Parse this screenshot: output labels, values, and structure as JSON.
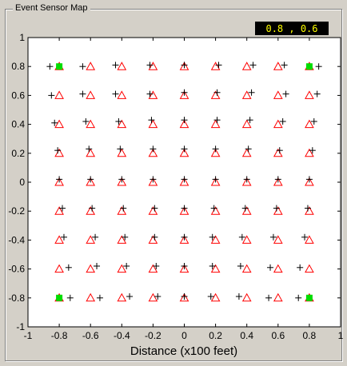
{
  "window": {
    "group_title": "Event Sensor Map",
    "coordinate_readout": "0.8 , 0.6"
  },
  "colors": {
    "panel_bg": "#d4d0c8",
    "plot_bg": "#ffffff",
    "triangle": "#ff0000",
    "cross": "#000000",
    "sensor": "#00dd00",
    "readout_bg": "#000000",
    "readout_text": "#ffff00"
  },
  "chart_data": {
    "type": "scatter",
    "xlabel": "Distance (x100 feet)",
    "ylabel": "",
    "title": "",
    "xlim": [
      -1,
      1
    ],
    "ylim": [
      -1,
      1
    ],
    "x_ticks": [
      "-1",
      "-0.8",
      "-0.6",
      "-0.4",
      "-0.2",
      "0",
      "0.2",
      "0.4",
      "0.6",
      "0.8",
      "1"
    ],
    "y_ticks": [
      "1",
      "0.8",
      "0.6",
      "0.4",
      "0.2",
      "0",
      "-0.2",
      "-0.4",
      "-0.6",
      "-0.8",
      "-1"
    ],
    "grid": false,
    "grid_positions": [
      -0.8,
      -0.6,
      -0.4,
      -0.2,
      0,
      0.2,
      0.4,
      0.6,
      0.8
    ],
    "sensors": [
      {
        "x": -0.8,
        "y": 0.8
      },
      {
        "x": 0.8,
        "y": 0.8
      },
      {
        "x": -0.8,
        "y": -0.8
      },
      {
        "x": 0.8,
        "y": -0.8
      }
    ],
    "series": [
      {
        "marker": "triangle",
        "description": "grid positions (red triangles)"
      },
      {
        "marker": "cross",
        "offsets_note": "estimated positions, offset from grid",
        "points": [
          [
            -0.86,
            0.8
          ],
          [
            -0.65,
            0.8
          ],
          [
            -0.44,
            0.81
          ],
          [
            -0.22,
            0.81
          ],
          [
            0.0,
            0.81
          ],
          [
            0.22,
            0.81
          ],
          [
            0.44,
            0.81
          ],
          [
            0.64,
            0.81
          ],
          [
            0.86,
            0.8
          ],
          [
            -0.85,
            0.6
          ],
          [
            -0.65,
            0.61
          ],
          [
            -0.44,
            0.61
          ],
          [
            -0.22,
            0.61
          ],
          [
            0.0,
            0.62
          ],
          [
            0.21,
            0.62
          ],
          [
            0.43,
            0.62
          ],
          [
            0.65,
            0.61
          ],
          [
            0.85,
            0.61
          ],
          [
            -0.83,
            0.41
          ],
          [
            -0.63,
            0.42
          ],
          [
            -0.42,
            0.42
          ],
          [
            -0.21,
            0.43
          ],
          [
            0.0,
            0.43
          ],
          [
            0.21,
            0.43
          ],
          [
            0.42,
            0.43
          ],
          [
            0.63,
            0.42
          ],
          [
            0.83,
            0.42
          ],
          [
            -0.81,
            0.22
          ],
          [
            -0.61,
            0.23
          ],
          [
            -0.41,
            0.23
          ],
          [
            -0.2,
            0.23
          ],
          [
            0.0,
            0.23
          ],
          [
            0.2,
            0.23
          ],
          [
            0.41,
            0.23
          ],
          [
            0.61,
            0.22
          ],
          [
            0.82,
            0.22
          ],
          [
            -0.8,
            0.02
          ],
          [
            -0.6,
            0.02
          ],
          [
            -0.4,
            0.02
          ],
          [
            -0.2,
            0.02
          ],
          [
            0.0,
            0.02
          ],
          [
            0.2,
            0.02
          ],
          [
            0.4,
            0.02
          ],
          [
            0.6,
            0.02
          ],
          [
            0.8,
            0.02
          ],
          [
            -0.78,
            -0.18
          ],
          [
            -0.59,
            -0.18
          ],
          [
            -0.39,
            -0.18
          ],
          [
            -0.19,
            -0.18
          ],
          [
            0.0,
            -0.18
          ],
          [
            0.19,
            -0.18
          ],
          [
            0.39,
            -0.18
          ],
          [
            0.59,
            -0.18
          ],
          [
            0.79,
            -0.18
          ],
          [
            -0.77,
            -0.38
          ],
          [
            -0.57,
            -0.38
          ],
          [
            -0.38,
            -0.38
          ],
          [
            -0.19,
            -0.38
          ],
          [
            0.0,
            -0.38
          ],
          [
            0.18,
            -0.38
          ],
          [
            0.37,
            -0.38
          ],
          [
            0.57,
            -0.38
          ],
          [
            0.77,
            -0.38
          ],
          [
            -0.74,
            -0.59
          ],
          [
            -0.56,
            -0.58
          ],
          [
            -0.37,
            -0.58
          ],
          [
            -0.18,
            -0.58
          ],
          [
            0.0,
            -0.58
          ],
          [
            0.18,
            -0.58
          ],
          [
            0.36,
            -0.58
          ],
          [
            0.55,
            -0.59
          ],
          [
            0.74,
            -0.59
          ],
          [
            -0.73,
            -0.8
          ],
          [
            -0.54,
            -0.8
          ],
          [
            -0.35,
            -0.79
          ],
          [
            -0.17,
            -0.79
          ],
          [
            0.0,
            -0.79
          ],
          [
            0.17,
            -0.79
          ],
          [
            0.35,
            -0.79
          ],
          [
            0.54,
            -0.8
          ],
          [
            0.73,
            -0.8
          ]
        ]
      }
    ]
  }
}
